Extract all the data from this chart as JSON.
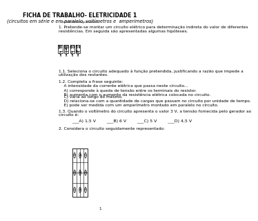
{
  "title": "FICHA DE TRABALHO- ELETRICIDADE 1",
  "subtitle": "(circuitos em série e em paralelo, voltímetros e  amperímetros)",
  "background_color": "#ffffff",
  "text_color": "#000000",
  "page_number": "1",
  "section1_text": "1. Pretende-se montar um circuito elétrico para determinação indireta do valor de diferentes\nresistências. Em seguida são apresentadas algumas hipóteses.",
  "section11_text": "1.1. Seleciona o circuito adequado à função pretendida, justificando a razão que impede a\nutilização dos restantes.",
  "section12_text": "1.2. Completa a frase seguinte:\n    A intensidade da corrente elétrica que passa neste circuito...\n    A) corresponde à queda de tensão entre os terminais do resistor.\n    B) aumenta com o aumento da resistência elétrica colocada no circuito.",
  "section12c_text": "    C) varia ao longo do mesmo.\n    D) relaciona-se com a quantidade de cargas que passam no circuito por unidade de tempo.\n    E) pode ser medida com um amperímetro montado em paralelo no circuito.",
  "section13_text": "1.3. Quando o voltímetro do circuito apresenta o valor 3 V, a tensão fornecida pelo gerador ao\ncircuito é:",
  "section13_options": "          ___A) 1,5 V        ___B) 6 V        ___C) 5 V        ___D) 4,5 V",
  "section2_text": "2. Considera o circuito seguidamente representado:"
}
